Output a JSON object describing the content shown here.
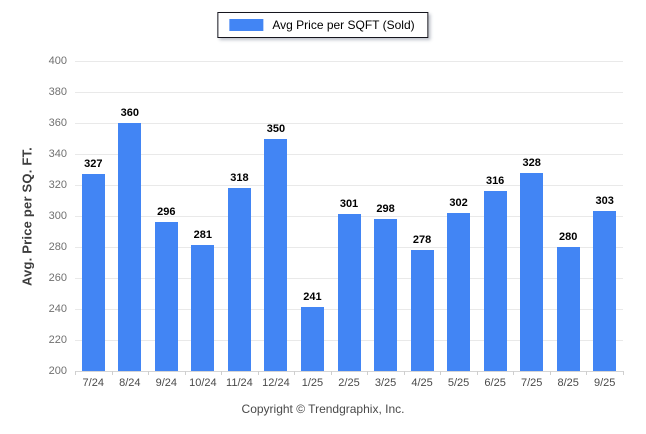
{
  "legend": {
    "label": "Avg Price per SQFT (Sold)"
  },
  "footer": {
    "text": "Copyright © Trendgraphix, Inc."
  },
  "colors": {
    "bar": "#4285F4",
    "gridline": "#e9e9e9",
    "axis_line": "#d5d5d5",
    "y_tick_label": "#707070",
    "x_tick_label": "#4a4a4a",
    "value_label": "#000000"
  },
  "chart_data": {
    "type": "bar",
    "title": "Avg Price per SQFT (Sold)",
    "categories": [
      "7/24",
      "8/24",
      "9/24",
      "10/24",
      "11/24",
      "12/24",
      "1/25",
      "2/25",
      "3/25",
      "4/25",
      "5/25",
      "6/25",
      "7/25",
      "8/25",
      "9/25"
    ],
    "values": [
      327,
      360,
      296,
      281,
      318,
      350,
      241,
      301,
      298,
      278,
      302,
      316,
      328,
      280,
      303
    ],
    "xlabel": "",
    "ylabel": "Avg. Price per SQ. FT.",
    "ylim": [
      200,
      400
    ],
    "ytick_step": 20,
    "grid": true,
    "legend_position": "top-center",
    "bar_color": "#4285F4",
    "value_labels_shown": true
  }
}
